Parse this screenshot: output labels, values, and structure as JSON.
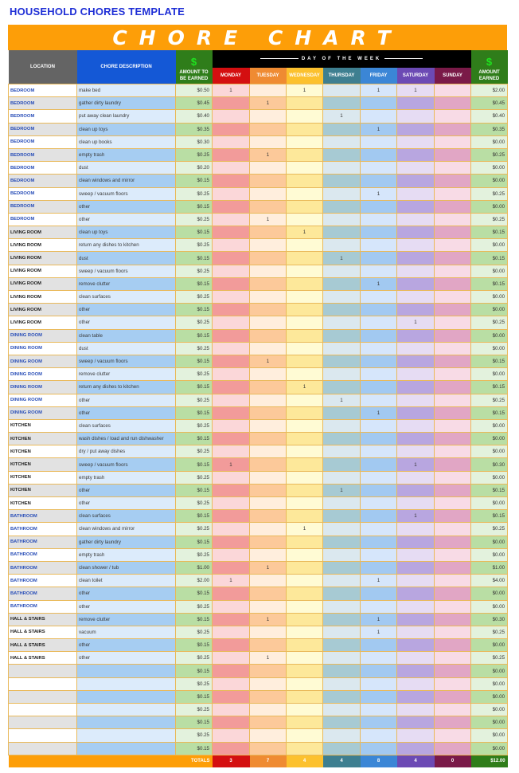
{
  "document_title": "HOUSEHOLD CHORES TEMPLATE",
  "banner_title": "CHORE CHART",
  "headers": {
    "location": "LOCATION",
    "chore_description": "CHORE DESCRIPTION",
    "amount_to_be_earned": "AMOUNT TO BE EARNED",
    "day_of_the_week": "DAY OF THE WEEK",
    "amount_earned": "AMOUNT EARNED",
    "dollar_icon": "$",
    "days": [
      "MONDAY",
      "TUESDAY",
      "WEDNESDAY",
      "THURSDAY",
      "FRIDAY",
      "SATURDAY",
      "SUNDAY"
    ]
  },
  "colors": {
    "banner": "#fd9e08",
    "title": "#1f2fd6",
    "location_header": "#646464",
    "description_header": "#1458d6",
    "amount_header": "#2f7d1a",
    "days": [
      "#d40f10",
      "#ef8b32",
      "#fcc12e",
      "#3e7f90",
      "#3b86d6",
      "#6c4ab4",
      "#7a1a48"
    ]
  },
  "rows": [
    {
      "location": "BEDROOM",
      "color": "blue",
      "chore": "make bed",
      "amount": "$0.50",
      "days": [
        "1",
        "",
        "1",
        "",
        "1",
        "1",
        ""
      ],
      "earned": "$2.00"
    },
    {
      "location": "BEDROOM",
      "color": "blue",
      "chore": "gather dirty laundry",
      "amount": "$0.45",
      "days": [
        "",
        "1",
        "",
        "",
        "",
        "",
        ""
      ],
      "earned": "$0.45"
    },
    {
      "location": "BEDROOM",
      "color": "blue",
      "chore": "put away clean laundry",
      "amount": "$0.40",
      "days": [
        "",
        "",
        "",
        "1",
        "",
        "",
        ""
      ],
      "earned": "$0.40"
    },
    {
      "location": "BEDROOM",
      "color": "blue",
      "chore": "clean up toys",
      "amount": "$0.35",
      "days": [
        "",
        "",
        "",
        "",
        "1",
        "",
        ""
      ],
      "earned": "$0.35"
    },
    {
      "location": "BEDROOM",
      "color": "blue",
      "chore": "clean up books",
      "amount": "$0.30",
      "days": [
        "",
        "",
        "",
        "",
        "",
        "",
        ""
      ],
      "earned": "$0.00"
    },
    {
      "location": "BEDROOM",
      "color": "blue",
      "chore": "empty trash",
      "amount": "$0.25",
      "days": [
        "",
        "1",
        "",
        "",
        "",
        "",
        ""
      ],
      "earned": "$0.25"
    },
    {
      "location": "BEDROOM",
      "color": "blue",
      "chore": "dust",
      "amount": "$0.20",
      "days": [
        "",
        "",
        "",
        "",
        "",
        "",
        ""
      ],
      "earned": "$0.00"
    },
    {
      "location": "BEDROOM",
      "color": "blue",
      "chore": "clean windows and mirror",
      "amount": "$0.15",
      "days": [
        "",
        "",
        "",
        "",
        "",
        "",
        ""
      ],
      "earned": "$0.00"
    },
    {
      "location": "BEDROOM",
      "color": "blue",
      "chore": "sweep / vacuum floors",
      "amount": "$0.25",
      "days": [
        "",
        "",
        "",
        "",
        "1",
        "",
        ""
      ],
      "earned": "$0.25"
    },
    {
      "location": "BEDROOM",
      "color": "blue",
      "chore": "other",
      "amount": "$0.15",
      "days": [
        "",
        "",
        "",
        "",
        "",
        "",
        ""
      ],
      "earned": "$0.00"
    },
    {
      "location": "BEDROOM",
      "color": "blue",
      "chore": "other",
      "amount": "$0.25",
      "days": [
        "",
        "1",
        "",
        "",
        "",
        "",
        ""
      ],
      "earned": "$0.25"
    },
    {
      "location": "LIVING ROOM",
      "color": "black",
      "chore": "clean up toys",
      "amount": "$0.15",
      "days": [
        "",
        "",
        "1",
        "",
        "",
        "",
        ""
      ],
      "earned": "$0.15"
    },
    {
      "location": "LIVING ROOM",
      "color": "black",
      "chore": "return any dishes to kitchen",
      "amount": "$0.25",
      "days": [
        "",
        "",
        "",
        "",
        "",
        "",
        ""
      ],
      "earned": "$0.00"
    },
    {
      "location": "LIVING ROOM",
      "color": "black",
      "chore": "dust",
      "amount": "$0.15",
      "days": [
        "",
        "",
        "",
        "1",
        "",
        "",
        ""
      ],
      "earned": "$0.15"
    },
    {
      "location": "LIVING ROOM",
      "color": "black",
      "chore": "sweep / vacuum floors",
      "amount": "$0.25",
      "days": [
        "",
        "",
        "",
        "",
        "",
        "",
        ""
      ],
      "earned": "$0.00"
    },
    {
      "location": "LIVING ROOM",
      "color": "black",
      "chore": "remove clutter",
      "amount": "$0.15",
      "days": [
        "",
        "",
        "",
        "",
        "1",
        "",
        ""
      ],
      "earned": "$0.15"
    },
    {
      "location": "LIVING ROOM",
      "color": "black",
      "chore": "clean surfaces",
      "amount": "$0.25",
      "days": [
        "",
        "",
        "",
        "",
        "",
        "",
        ""
      ],
      "earned": "$0.00"
    },
    {
      "location": "LIVING ROOM",
      "color": "black",
      "chore": "other",
      "amount": "$0.15",
      "days": [
        "",
        "",
        "",
        "",
        "",
        "",
        ""
      ],
      "earned": "$0.00"
    },
    {
      "location": "LIVING ROOM",
      "color": "black",
      "chore": "other",
      "amount": "$0.25",
      "days": [
        "",
        "",
        "",
        "",
        "",
        "1",
        ""
      ],
      "earned": "$0.25"
    },
    {
      "location": "DINING ROOM",
      "color": "blue",
      "chore": "clean table",
      "amount": "$0.15",
      "days": [
        "",
        "",
        "",
        "",
        "",
        "",
        ""
      ],
      "earned": "$0.00"
    },
    {
      "location": "DINING ROOM",
      "color": "blue",
      "chore": "dust",
      "amount": "$0.25",
      "days": [
        "",
        "",
        "",
        "",
        "",
        "",
        ""
      ],
      "earned": "$0.00"
    },
    {
      "location": "DINING ROOM",
      "color": "blue",
      "chore": "sweep / vacuum floors",
      "amount": "$0.15",
      "days": [
        "",
        "1",
        "",
        "",
        "",
        "",
        ""
      ],
      "earned": "$0.15"
    },
    {
      "location": "DINING ROOM",
      "color": "blue",
      "chore": "remove clutter",
      "amount": "$0.25",
      "days": [
        "",
        "",
        "",
        "",
        "",
        "",
        ""
      ],
      "earned": "$0.00"
    },
    {
      "location": "DINING ROOM",
      "color": "blue",
      "chore": "return any dishes to kitchen",
      "amount": "$0.15",
      "days": [
        "",
        "",
        "1",
        "",
        "",
        "",
        ""
      ],
      "earned": "$0.15"
    },
    {
      "location": "DINING ROOM",
      "color": "blue",
      "chore": "other",
      "amount": "$0.25",
      "days": [
        "",
        "",
        "",
        "1",
        "",
        "",
        ""
      ],
      "earned": "$0.25"
    },
    {
      "location": "DINING ROOM",
      "color": "blue",
      "chore": "other",
      "amount": "$0.15",
      "days": [
        "",
        "",
        "",
        "",
        "1",
        "",
        ""
      ],
      "earned": "$0.15"
    },
    {
      "location": "KITCHEN",
      "color": "black",
      "chore": "clean surfaces",
      "amount": "$0.25",
      "days": [
        "",
        "",
        "",
        "",
        "",
        "",
        ""
      ],
      "earned": "$0.00"
    },
    {
      "location": "KITCHEN",
      "color": "black",
      "chore": "wash dishes / load and run dishwasher",
      "amount": "$0.15",
      "days": [
        "",
        "",
        "",
        "",
        "",
        "",
        ""
      ],
      "earned": "$0.00"
    },
    {
      "location": "KITCHEN",
      "color": "black",
      "chore": "dry / put away dishes",
      "amount": "$0.25",
      "days": [
        "",
        "",
        "",
        "",
        "",
        "",
        ""
      ],
      "earned": "$0.00"
    },
    {
      "location": "KITCHEN",
      "color": "black",
      "chore": "sweep / vacuum floors",
      "amount": "$0.15",
      "days": [
        "1",
        "",
        "",
        "",
        "",
        "1",
        ""
      ],
      "earned": "$0.30"
    },
    {
      "location": "KITCHEN",
      "color": "black",
      "chore": "empty trash",
      "amount": "$0.25",
      "days": [
        "",
        "",
        "",
        "",
        "",
        "",
        ""
      ],
      "earned": "$0.00"
    },
    {
      "location": "KITCHEN",
      "color": "black",
      "chore": "other",
      "amount": "$0.15",
      "days": [
        "",
        "",
        "",
        "1",
        "",
        "",
        ""
      ],
      "earned": "$0.15"
    },
    {
      "location": "KITCHEN",
      "color": "black",
      "chore": "other",
      "amount": "$0.25",
      "days": [
        "",
        "",
        "",
        "",
        "",
        "",
        ""
      ],
      "earned": "$0.00"
    },
    {
      "location": "BATHROOM",
      "color": "blue",
      "chore": "clean surfaces",
      "amount": "$0.15",
      "days": [
        "",
        "",
        "",
        "",
        "",
        "1",
        ""
      ],
      "earned": "$0.15"
    },
    {
      "location": "BATHROOM",
      "color": "blue",
      "chore": "clean windows and mirror",
      "amount": "$0.25",
      "days": [
        "",
        "",
        "1",
        "",
        "",
        "",
        ""
      ],
      "earned": "$0.25"
    },
    {
      "location": "BATHROOM",
      "color": "blue",
      "chore": "gather dirty laundry",
      "amount": "$0.15",
      "days": [
        "",
        "",
        "",
        "",
        "",
        "",
        ""
      ],
      "earned": "$0.00"
    },
    {
      "location": "BATHROOM",
      "color": "blue",
      "chore": "empty trash",
      "amount": "$0.25",
      "days": [
        "",
        "",
        "",
        "",
        "",
        "",
        ""
      ],
      "earned": "$0.00"
    },
    {
      "location": "BATHROOM",
      "color": "blue",
      "chore": "clean shower / tub",
      "amount": "$1.00",
      "days": [
        "",
        "1",
        "",
        "",
        "",
        "",
        ""
      ],
      "earned": "$1.00"
    },
    {
      "location": "BATHROOM",
      "color": "blue",
      "chore": "clean toilet",
      "amount": "$2.00",
      "days": [
        "1",
        "",
        "",
        "",
        "1",
        "",
        ""
      ],
      "earned": "$4.00"
    },
    {
      "location": "BATHROOM",
      "color": "blue",
      "chore": "other",
      "amount": "$0.15",
      "days": [
        "",
        "",
        "",
        "",
        "",
        "",
        ""
      ],
      "earned": "$0.00"
    },
    {
      "location": "BATHROOM",
      "color": "blue",
      "chore": "other",
      "amount": "$0.25",
      "days": [
        "",
        "",
        "",
        "",
        "",
        "",
        ""
      ],
      "earned": "$0.00"
    },
    {
      "location": "HALL & STAIRS",
      "color": "black",
      "chore": "remove clutter",
      "amount": "$0.15",
      "days": [
        "",
        "1",
        "",
        "",
        "1",
        "",
        ""
      ],
      "earned": "$0.30"
    },
    {
      "location": "HALL & STAIRS",
      "color": "black",
      "chore": "vacuum",
      "amount": "$0.25",
      "days": [
        "",
        "",
        "",
        "",
        "1",
        "",
        ""
      ],
      "earned": "$0.25"
    },
    {
      "location": "HALL & STAIRS",
      "color": "black",
      "chore": "other",
      "amount": "$0.15",
      "days": [
        "",
        "",
        "",
        "",
        "",
        "",
        ""
      ],
      "earned": "$0.00"
    },
    {
      "location": "HALL & STAIRS",
      "color": "black",
      "chore": "other",
      "amount": "$0.25",
      "days": [
        "",
        "1",
        "",
        "",
        "",
        "",
        ""
      ],
      "earned": "$0.25"
    },
    {
      "location": "",
      "color": "black",
      "chore": "",
      "amount": "$0.15",
      "days": [
        "",
        "",
        "",
        "",
        "",
        "",
        ""
      ],
      "earned": "$0.00"
    },
    {
      "location": "",
      "color": "black",
      "chore": "",
      "amount": "$0.25",
      "days": [
        "",
        "",
        "",
        "",
        "",
        "",
        ""
      ],
      "earned": "$0.00"
    },
    {
      "location": "",
      "color": "black",
      "chore": "",
      "amount": "$0.15",
      "days": [
        "",
        "",
        "",
        "",
        "",
        "",
        ""
      ],
      "earned": "$0.00"
    },
    {
      "location": "",
      "color": "black",
      "chore": "",
      "amount": "$0.25",
      "days": [
        "",
        "",
        "",
        "",
        "",
        "",
        ""
      ],
      "earned": "$0.00"
    },
    {
      "location": "",
      "color": "black",
      "chore": "",
      "amount": "$0.15",
      "days": [
        "",
        "",
        "",
        "",
        "",
        "",
        ""
      ],
      "earned": "$0.00"
    },
    {
      "location": "",
      "color": "black",
      "chore": "",
      "amount": "$0.25",
      "days": [
        "",
        "",
        "",
        "",
        "",
        "",
        ""
      ],
      "earned": "$0.00"
    },
    {
      "location": "",
      "color": "black",
      "chore": "",
      "amount": "$0.15",
      "days": [
        "",
        "",
        "",
        "",
        "",
        "",
        ""
      ],
      "earned": "$0.00"
    }
  ],
  "totals": {
    "label": "TOTALS",
    "days": [
      "3",
      "7",
      "4",
      "4",
      "8",
      "4",
      "0"
    ],
    "earned": "$12.00"
  }
}
